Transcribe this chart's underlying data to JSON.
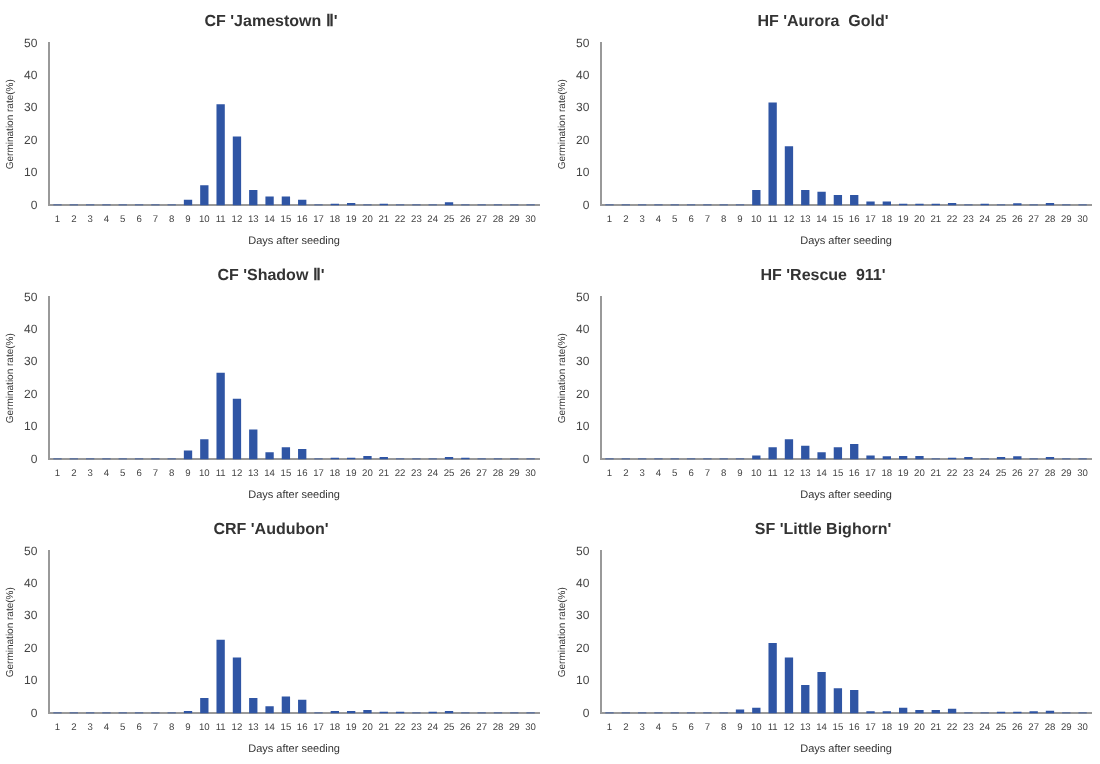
{
  "chart_data": [
    {
      "type": "bar",
      "title": "CF 'Jamestown Ⅱ'",
      "xlabel": "Days after seeding",
      "ylabel": "Germination rate(%)",
      "color": "#2f55a4",
      "xlim": [
        0.5,
        30.5
      ],
      "xticks": [
        1,
        2,
        3,
        4,
        5,
        6,
        7,
        8,
        9,
        10,
        11,
        12,
        13,
        14,
        15,
        16,
        17,
        18,
        19,
        20,
        21,
        22,
        23,
        24,
        25,
        26,
        27,
        28,
        29,
        30
      ],
      "ylim": [
        0,
        50
      ],
      "yticks": [
        0,
        10,
        20,
        30,
        40,
        50
      ],
      "x": [
        1,
        2,
        3,
        4,
        5,
        6,
        7,
        8,
        9,
        10,
        11,
        12,
        13,
        14,
        15,
        16,
        17,
        18,
        19,
        20,
        21,
        22,
        23,
        24,
        25,
        26,
        27,
        28,
        29,
        30
      ],
      "values": [
        0,
        0,
        0,
        0,
        0,
        0,
        0,
        0,
        1.5,
        6,
        31,
        21,
        4.5,
        2.5,
        2.5,
        1.5,
        0,
        0.3,
        0.5,
        0,
        0.3,
        0,
        0,
        0,
        0.7,
        0,
        0,
        0,
        0,
        0
      ]
    },
    {
      "type": "bar",
      "title": "HF 'Aurora  Gold'",
      "xlabel": "Days after seeding",
      "ylabel": "Germination rate(%)",
      "color": "#2f55a4",
      "xlim": [
        0.5,
        30.5
      ],
      "xticks": [
        1,
        2,
        3,
        4,
        5,
        6,
        7,
        8,
        9,
        10,
        11,
        12,
        13,
        14,
        15,
        16,
        17,
        18,
        19,
        20,
        21,
        22,
        23,
        24,
        25,
        26,
        27,
        28,
        29,
        30
      ],
      "ylim": [
        0,
        50
      ],
      "yticks": [
        0,
        10,
        20,
        30,
        40,
        50
      ],
      "x": [
        1,
        2,
        3,
        4,
        5,
        6,
        7,
        8,
        9,
        10,
        11,
        12,
        13,
        14,
        15,
        16,
        17,
        18,
        19,
        20,
        21,
        22,
        23,
        24,
        25,
        26,
        27,
        28,
        29,
        30
      ],
      "values": [
        0,
        0,
        0,
        0,
        0,
        0,
        0,
        0,
        0,
        4.5,
        31.5,
        18,
        4.5,
        4,
        3,
        3,
        1,
        1,
        0.3,
        0.3,
        0.3,
        0.5,
        0,
        0.3,
        0,
        0.4,
        0,
        0.5,
        0,
        0
      ]
    },
    {
      "type": "bar",
      "title": "CF 'Shadow Ⅱ'",
      "xlabel": "Days after seeding",
      "ylabel": "Germination rate(%)",
      "color": "#2f55a4",
      "xlim": [
        0.5,
        30.5
      ],
      "xticks": [
        1,
        2,
        3,
        4,
        5,
        6,
        7,
        8,
        9,
        10,
        11,
        12,
        13,
        14,
        15,
        16,
        17,
        18,
        19,
        20,
        21,
        22,
        23,
        24,
        25,
        26,
        27,
        28,
        29,
        30
      ],
      "ylim": [
        0,
        50
      ],
      "yticks": [
        0,
        10,
        20,
        30,
        40,
        50
      ],
      "x": [
        1,
        2,
        3,
        4,
        5,
        6,
        7,
        8,
        9,
        10,
        11,
        12,
        13,
        14,
        15,
        16,
        17,
        18,
        19,
        20,
        21,
        22,
        23,
        24,
        25,
        26,
        27,
        28,
        29,
        30
      ],
      "values": [
        0,
        0,
        0,
        0,
        0,
        0,
        0,
        0,
        2.5,
        6,
        26.5,
        18.5,
        9,
        2,
        3.5,
        3,
        0,
        0.3,
        0.3,
        0.8,
        0.5,
        0,
        0,
        0,
        0.5,
        0.3,
        0,
        0,
        0,
        0
      ]
    },
    {
      "type": "bar",
      "title": "HF 'Rescue  911'",
      "xlabel": "Days after seeding",
      "ylabel": "Germination rate(%)",
      "color": "#2f55a4",
      "xlim": [
        0.5,
        30.5
      ],
      "xticks": [
        1,
        2,
        3,
        4,
        5,
        6,
        7,
        8,
        9,
        10,
        11,
        12,
        13,
        14,
        15,
        16,
        17,
        18,
        19,
        20,
        21,
        22,
        23,
        24,
        25,
        26,
        27,
        28,
        29,
        30
      ],
      "ylim": [
        0,
        50
      ],
      "yticks": [
        0,
        10,
        20,
        30,
        40,
        50
      ],
      "x": [
        1,
        2,
        3,
        4,
        5,
        6,
        7,
        8,
        9,
        10,
        11,
        12,
        13,
        14,
        15,
        16,
        17,
        18,
        19,
        20,
        21,
        22,
        23,
        24,
        25,
        26,
        27,
        28,
        29,
        30
      ],
      "values": [
        0,
        0,
        0,
        0,
        0,
        0,
        0,
        0,
        0,
        1,
        3.5,
        6,
        4,
        2,
        3.5,
        4.5,
        1,
        0.7,
        0.8,
        0.8,
        0,
        0.3,
        0.5,
        0,
        0.5,
        0.7,
        0,
        0.5,
        0,
        0
      ]
    },
    {
      "type": "bar",
      "title": "CRF 'Audubon'",
      "xlabel": "Days after seeding",
      "ylabel": "Germination rate(%)",
      "color": "#2f55a4",
      "xlim": [
        0.5,
        30.5
      ],
      "xticks": [
        1,
        2,
        3,
        4,
        5,
        6,
        7,
        8,
        9,
        10,
        11,
        12,
        13,
        14,
        15,
        16,
        17,
        18,
        19,
        20,
        21,
        22,
        23,
        24,
        25,
        26,
        27,
        28,
        29,
        30
      ],
      "ylim": [
        0,
        50
      ],
      "yticks": [
        0,
        10,
        20,
        30,
        40,
        50
      ],
      "x": [
        1,
        2,
        3,
        4,
        5,
        6,
        7,
        8,
        9,
        10,
        11,
        12,
        13,
        14,
        15,
        16,
        17,
        18,
        19,
        20,
        21,
        22,
        23,
        24,
        25,
        26,
        27,
        28,
        29,
        30
      ],
      "values": [
        0,
        0,
        0,
        0,
        0,
        0,
        0,
        0,
        0.5,
        4.5,
        22.5,
        17,
        4.5,
        2,
        5,
        4,
        0,
        0.5,
        0.5,
        0.8,
        0.3,
        0.3,
        0,
        0.3,
        0.5,
        0,
        0,
        0,
        0,
        0
      ]
    },
    {
      "type": "bar",
      "title": "SF 'Little Bighorn'",
      "xlabel": "Days after seeding",
      "ylabel": "Germination rate(%)",
      "color": "#2f55a4",
      "xlim": [
        0.5,
        30.5
      ],
      "xticks": [
        1,
        2,
        3,
        4,
        5,
        6,
        7,
        8,
        9,
        10,
        11,
        12,
        13,
        14,
        15,
        16,
        17,
        18,
        19,
        20,
        21,
        22,
        23,
        24,
        25,
        26,
        27,
        28,
        29,
        30
      ],
      "ylim": [
        0,
        50
      ],
      "yticks": [
        0,
        10,
        20,
        30,
        40,
        50
      ],
      "x": [
        1,
        2,
        3,
        4,
        5,
        6,
        7,
        8,
        9,
        10,
        11,
        12,
        13,
        14,
        15,
        16,
        17,
        18,
        19,
        20,
        21,
        22,
        23,
        24,
        25,
        26,
        27,
        28,
        29,
        30
      ],
      "values": [
        0,
        0,
        0,
        0,
        0,
        0,
        0,
        0,
        1,
        1.5,
        21.5,
        17,
        8.5,
        12.5,
        7.5,
        7,
        0.4,
        0.4,
        1.5,
        0.8,
        0.8,
        1.2,
        0,
        0,
        0.3,
        0.3,
        0.4,
        0.6,
        0,
        0
      ]
    }
  ]
}
